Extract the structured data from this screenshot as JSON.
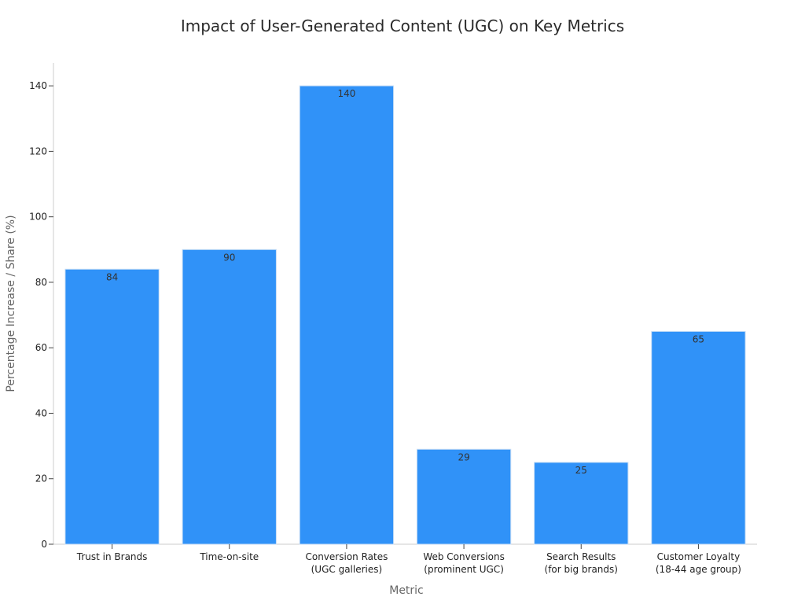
{
  "chart_data": {
    "type": "bar",
    "title": "Impact of User-Generated Content (UGC) on Key Metrics",
    "xlabel": "Metric",
    "ylabel": "Percentage Increase / Share (%)",
    "categories": [
      [
        "Trust in Brands"
      ],
      [
        "Time-on-site"
      ],
      [
        "Conversion Rates",
        "(UGC galleries)"
      ],
      [
        "Web Conversions",
        "(prominent UGC)"
      ],
      [
        "Search Results",
        "(for big brands)"
      ],
      [
        "Customer Loyalty",
        "(18-44 age group)"
      ]
    ],
    "values": [
      84,
      90,
      140,
      29,
      25,
      65
    ],
    "ylim": [
      0,
      147
    ],
    "yticks": [
      0,
      20,
      40,
      60,
      80,
      100,
      120,
      140
    ],
    "grid": false,
    "bar_color": "#3092f8",
    "bar_edge_color": "#c8def5"
  }
}
